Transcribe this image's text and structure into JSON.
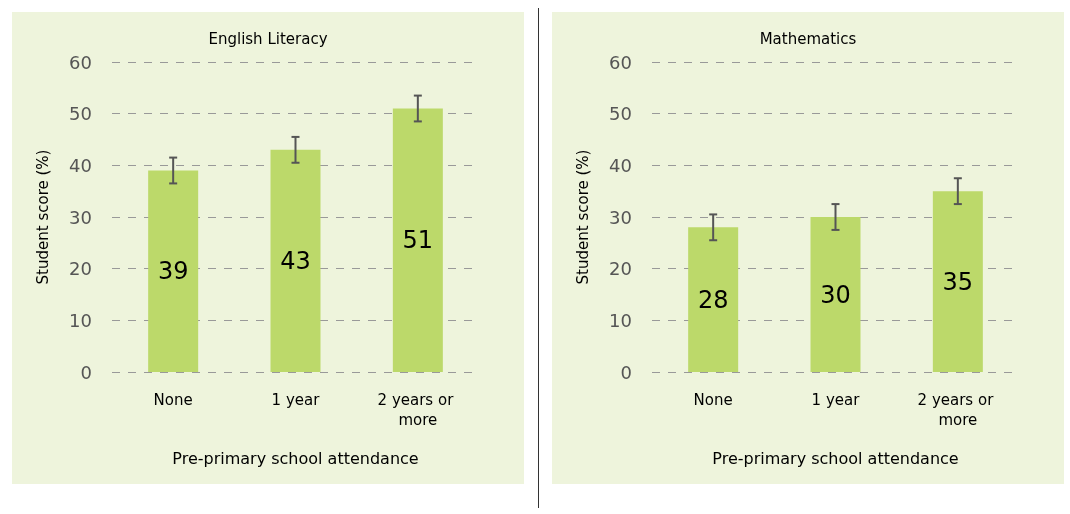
{
  "chart_data": [
    {
      "type": "bar",
      "title": "English Literacy",
      "xlabel": "Pre-primary school attendance",
      "ylabel": "Student score (%)",
      "categories": [
        "None",
        "1 year",
        "2 years or more"
      ],
      "values": [
        39,
        43,
        51
      ],
      "errors": [
        2.5,
        2.5,
        2.5
      ],
      "color": "#bcd96a",
      "ylim": [
        0,
        60
      ],
      "yticks": [
        0,
        10,
        20,
        30,
        40,
        50,
        60
      ],
      "grid": "y",
      "data_labels": true
    },
    {
      "type": "bar",
      "title": "Mathematics",
      "xlabel": "Pre-primary school attendance",
      "ylabel": "Student score (%)",
      "categories": [
        "None",
        "1 year",
        "2 years or more"
      ],
      "values": [
        28,
        30,
        35
      ],
      "errors": [
        2.5,
        2.5,
        2.5
      ],
      "color": "#bcd96a",
      "ylim": [
        0,
        60
      ],
      "yticks": [
        0,
        10,
        20,
        30,
        40,
        50,
        60
      ],
      "grid": "y",
      "data_labels": true
    }
  ]
}
